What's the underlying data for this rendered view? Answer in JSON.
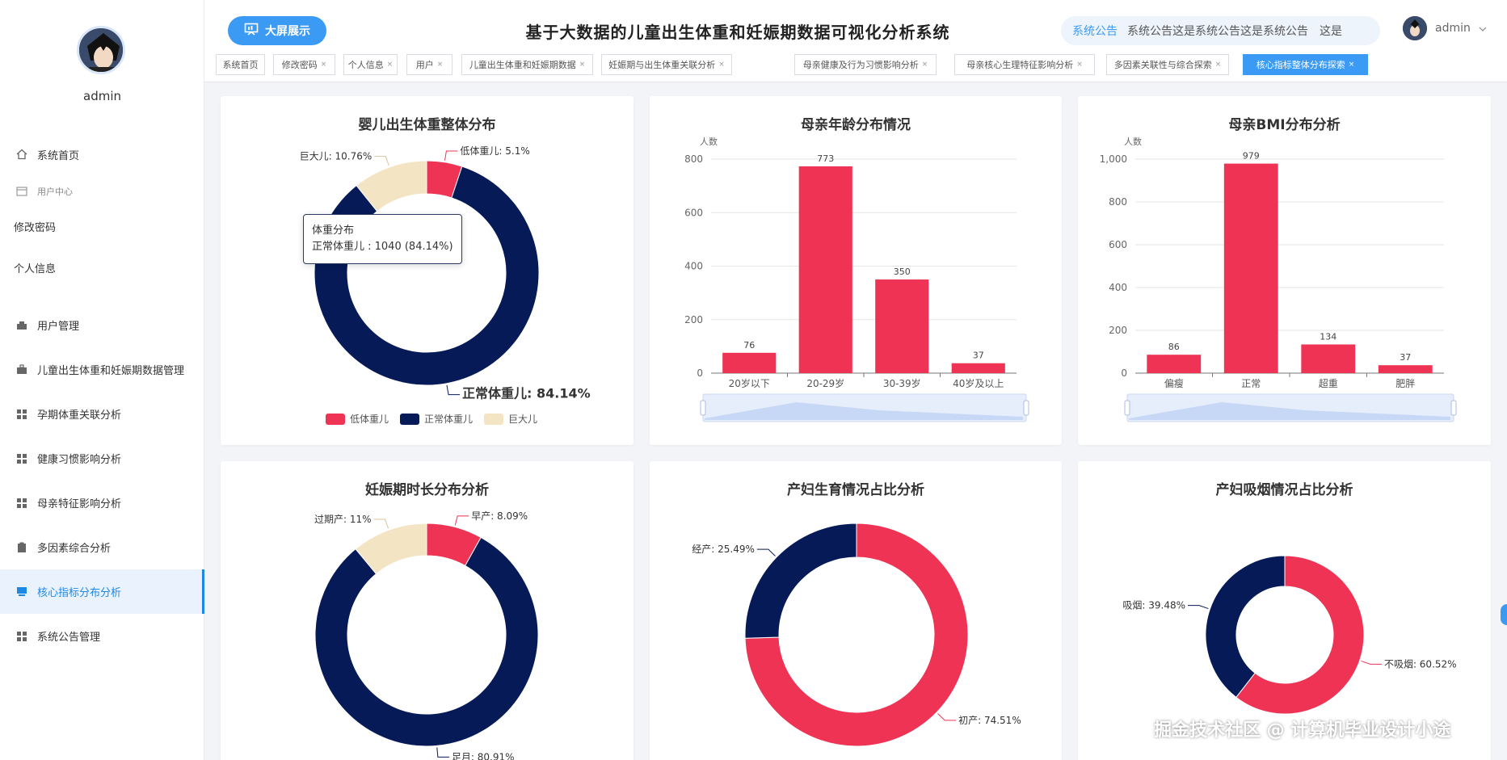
{
  "sidebar": {
    "username": "admin",
    "items": [
      {
        "label": "系统首页",
        "icon": "home-icon"
      },
      {
        "label": "用户中心",
        "icon": "user-center-icon"
      },
      {
        "label": "修改密码"
      },
      {
        "label": "个人信息"
      },
      {
        "label": "用户管理",
        "icon": "user-manage-icon"
      },
      {
        "label": "儿童出生体重和妊娠期数据管理",
        "icon": "briefcase-icon"
      },
      {
        "label": "孕期体重关联分析",
        "icon": "grid-icon"
      },
      {
        "label": "健康习惯影响分析",
        "icon": "grid-icon"
      },
      {
        "label": "母亲特征影响分析",
        "icon": "grid-icon"
      },
      {
        "label": "多因素综合分析",
        "icon": "clipboard-icon"
      },
      {
        "label": "核心指标分布分析",
        "icon": "monitor-icon",
        "active": true
      },
      {
        "label": "系统公告管理",
        "icon": "grid-icon"
      }
    ]
  },
  "header": {
    "big_screen_label": "大屏展示",
    "title": "基于大数据的儿童出生体重和妊娠期数据可视化分析系统",
    "notice_label": "系统公告",
    "notice_text": "系统公告这是系统公告这是系统公告　这是",
    "user": "admin"
  },
  "tabs": [
    {
      "label": "系统首页",
      "closable": false
    },
    {
      "label": "修改密码",
      "closable": true
    },
    {
      "label": "个人信息",
      "closable": true
    },
    {
      "label": "用户",
      "closable": true
    },
    {
      "label": "儿童出生体重和妊娠期数据",
      "closable": true
    },
    {
      "label": "妊娠期与出生体重关联分析",
      "closable": true
    },
    {
      "label": "母亲健康及行为习惯影响分析",
      "closable": true
    },
    {
      "label": "母亲核心生理特征影响分析",
      "closable": true
    },
    {
      "label": "多因素关联性与综合探索",
      "closable": true
    },
    {
      "label": "核心指标整体分布探索",
      "closable": true,
      "active": true
    }
  ],
  "colors": {
    "red": "#ee3354",
    "navy": "#061a57",
    "beige": "#f3e4c4",
    "accent": "#3b9af4"
  },
  "tooltip": {
    "title": "体重分布",
    "line": "正常体重儿 : 1040 (84.14%)"
  },
  "watermark": "掘金技术社区 @ 计算机毕业设计小途",
  "chart_data": [
    {
      "type": "pie",
      "title": "婴儿出生体重整体分布",
      "labels": [
        "低体重儿",
        "正常体重儿",
        "巨大儿"
      ],
      "values": [
        5.1,
        84.14,
        10.76
      ],
      "label_texts": [
        "低体重儿: 5.1%",
        "正常体重儿: 84.14%",
        "巨大儿: 10.76%"
      ],
      "colors": [
        "#ee3354",
        "#061a57",
        "#f3e4c4"
      ],
      "legend": "bottom"
    },
    {
      "type": "bar",
      "title": "母亲年龄分布情况",
      "ylabel": "人数",
      "categories": [
        "20岁以下",
        "20-29岁",
        "30-39岁",
        "40岁及以上"
      ],
      "values": [
        76,
        773,
        350,
        37
      ],
      "ylim": [
        0,
        800
      ],
      "yticks": [
        "0",
        "200",
        "400",
        "600",
        "800"
      ]
    },
    {
      "type": "bar",
      "title": "母亲BMI分布分析",
      "ylabel": "人数",
      "categories": [
        "偏瘦",
        "正常",
        "超重",
        "肥胖"
      ],
      "values": [
        86,
        979,
        134,
        37
      ],
      "ylim": [
        0,
        1000
      ],
      "yticks": [
        "0",
        "200",
        "400",
        "600",
        "800",
        "1,000"
      ]
    },
    {
      "type": "pie",
      "title": "妊娠期时长分布分析",
      "labels": [
        "早产",
        "足月",
        "过期产"
      ],
      "values": [
        8.09,
        80.91,
        11
      ],
      "label_texts": [
        "早产: 8.09%",
        "足月: 80.91%",
        "过期产: 11%"
      ],
      "colors": [
        "#ee3354",
        "#061a57",
        "#f3e4c4"
      ]
    },
    {
      "type": "pie",
      "title": "产妇生育情况占比分析",
      "labels": [
        "初产",
        "经产"
      ],
      "values": [
        74.51,
        25.49
      ],
      "label_texts": [
        "初产: 74.51%",
        "经产: 25.49%"
      ],
      "colors": [
        "#ee3354",
        "#061a57"
      ]
    },
    {
      "type": "pie",
      "title": "产妇吸烟情况占比分析",
      "labels": [
        "不吸烟",
        "吸烟"
      ],
      "values": [
        60.52,
        39.48
      ],
      "label_texts": [
        "不吸烟: 60.52%",
        "吸烟: 39.48%"
      ],
      "colors": [
        "#ee3354",
        "#061a57"
      ]
    }
  ]
}
